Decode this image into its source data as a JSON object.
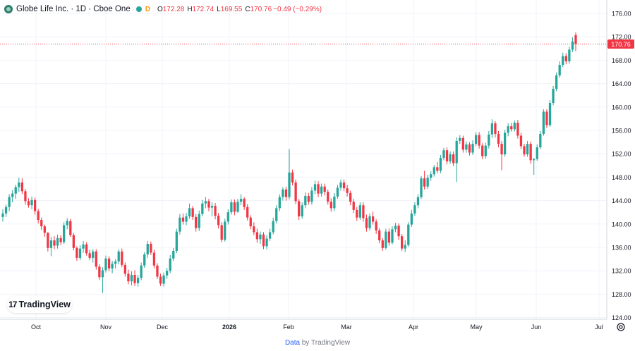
{
  "header": {
    "symbol": "Globe Life Inc. · 1D · Cboe One",
    "delayed_badge": "D",
    "o_label": "O",
    "o_value": "172.28",
    "h_label": "H",
    "h_value": "172.74",
    "l_label": "L",
    "l_value": "169.55",
    "c_label": "C",
    "c_value": "170.76",
    "change": "−0.49 (−0.29%)"
  },
  "branding": {
    "logo_mark": "17",
    "logo_text": "TradingView"
  },
  "footer": {
    "data_link": "Data",
    "by_text": " by TradingView"
  },
  "colors": {
    "up": "#26a69a",
    "down": "#f23645",
    "grid": "#f0f3fa",
    "axis_text": "#131722",
    "price_label_bg": "#f23645"
  },
  "chart_data": {
    "type": "candlestick",
    "title": "Globe Life Inc. · 1D · Cboe One",
    "y_ticks": [
      "124.00",
      "128.00",
      "132.00",
      "136.00",
      "140.00",
      "144.00",
      "148.00",
      "152.00",
      "156.00",
      "160.00",
      "164.00",
      "168.00",
      "172.00",
      "176.00"
    ],
    "x_ticks": [
      "Oct",
      "Nov",
      "Dec",
      "2026",
      "Feb",
      "Mar",
      "Apr",
      "May",
      "Jun",
      "Jul"
    ],
    "ylim": [
      124,
      176
    ],
    "last_price": 170.76,
    "last_price_label": "170.76",
    "grid": true,
    "ohlc": [
      [
        141.2,
        142.5,
        140.4,
        141.8
      ],
      [
        141.8,
        143.3,
        141.2,
        142.9
      ],
      [
        142.9,
        145.1,
        142.2,
        144.6
      ],
      [
        144.6,
        145.8,
        143.7,
        145.2
      ],
      [
        145.2,
        146.7,
        144.3,
        146.3
      ],
      [
        146.3,
        147.9,
        145.5,
        147.1
      ],
      [
        147.1,
        147.8,
        145.1,
        145.6
      ],
      [
        145.6,
        146.0,
        143.3,
        143.9
      ],
      [
        143.9,
        144.4,
        142.8,
        143.2
      ],
      [
        143.2,
        144.7,
        142.5,
        144.1
      ],
      [
        144.1,
        144.5,
        141.6,
        142.2
      ],
      [
        142.2,
        142.6,
        140.1,
        140.7
      ],
      [
        140.7,
        141.1,
        139.0,
        139.6
      ],
      [
        139.6,
        139.9,
        137.8,
        138.5
      ],
      [
        138.5,
        138.6,
        135.3,
        135.9
      ],
      [
        135.9,
        137.8,
        134.5,
        137.2
      ],
      [
        137.2,
        137.9,
        135.7,
        136.3
      ],
      [
        136.3,
        138.2,
        135.8,
        137.6
      ],
      [
        137.6,
        138.1,
        136.4,
        136.9
      ],
      [
        136.9,
        140.3,
        136.6,
        139.8
      ],
      [
        139.8,
        141.0,
        139.1,
        140.5
      ],
      [
        140.5,
        140.9,
        137.8,
        138.1
      ],
      [
        138.1,
        138.5,
        135.5,
        135.9
      ],
      [
        135.9,
        136.2,
        133.7,
        134.2
      ],
      [
        134.2,
        136.4,
        133.8,
        135.8
      ],
      [
        135.8,
        137.1,
        135.1,
        136.5
      ],
      [
        136.5,
        136.9,
        134.6,
        135.0
      ],
      [
        135.0,
        135.6,
        133.8,
        134.2
      ],
      [
        134.2,
        135.7,
        133.4,
        135.3
      ],
      [
        135.3,
        135.7,
        132.2,
        132.7
      ],
      [
        132.7,
        133.1,
        130.4,
        130.9
      ],
      [
        130.9,
        132.6,
        128.2,
        132.1
      ],
      [
        132.1,
        134.6,
        131.7,
        134.1
      ],
      [
        134.1,
        134.5,
        131.9,
        132.4
      ],
      [
        132.4,
        133.7,
        131.6,
        133.2
      ],
      [
        133.2,
        134.0,
        132.4,
        133.6
      ],
      [
        133.6,
        135.7,
        133.1,
        135.3
      ],
      [
        135.3,
        135.8,
        132.6,
        133.0
      ],
      [
        133.0,
        133.4,
        131.0,
        131.5
      ],
      [
        131.5,
        132.2,
        129.7,
        130.2
      ],
      [
        130.2,
        131.9,
        129.5,
        131.3
      ],
      [
        131.3,
        132.1,
        129.4,
        129.9
      ],
      [
        129.9,
        131.3,
        129.3,
        130.8
      ],
      [
        130.8,
        133.4,
        130.4,
        132.9
      ],
      [
        132.9,
        135.2,
        132.5,
        134.8
      ],
      [
        134.8,
        137.1,
        134.2,
        136.6
      ],
      [
        136.6,
        137.0,
        134.7,
        135.1
      ],
      [
        135.1,
        135.6,
        132.4,
        132.9
      ],
      [
        132.9,
        133.3,
        130.6,
        131.0
      ],
      [
        131.0,
        131.5,
        129.4,
        129.8
      ],
      [
        129.8,
        131.7,
        129.3,
        131.2
      ],
      [
        131.2,
        132.5,
        130.6,
        132.0
      ],
      [
        132.0,
        134.7,
        131.6,
        134.1
      ],
      [
        134.1,
        135.9,
        133.7,
        135.4
      ],
      [
        135.4,
        139.2,
        135.0,
        138.7
      ],
      [
        138.7,
        141.7,
        138.2,
        141.1
      ],
      [
        141.1,
        141.8,
        139.9,
        140.4
      ],
      [
        140.4,
        141.9,
        139.8,
        141.3
      ],
      [
        141.3,
        143.5,
        140.9,
        142.7
      ],
      [
        142.7,
        143.1,
        140.7,
        141.2
      ],
      [
        141.2,
        141.7,
        138.7,
        139.3
      ],
      [
        139.3,
        142.3,
        138.8,
        141.7
      ],
      [
        141.7,
        144.1,
        141.3,
        143.5
      ],
      [
        143.5,
        144.6,
        142.7,
        143.9
      ],
      [
        143.9,
        144.3,
        142.2,
        142.8
      ],
      [
        142.8,
        143.7,
        141.3,
        143.1
      ],
      [
        143.1,
        143.6,
        140.8,
        141.4
      ],
      [
        141.4,
        141.9,
        139.2,
        139.8
      ],
      [
        139.8,
        140.3,
        136.9,
        137.3
      ],
      [
        137.3,
        140.9,
        137.0,
        140.4
      ],
      [
        140.4,
        142.5,
        139.9,
        142.0
      ],
      [
        142.0,
        144.2,
        141.6,
        143.7
      ],
      [
        143.7,
        144.2,
        141.5,
        142.1
      ],
      [
        142.1,
        144.3,
        141.9,
        143.8
      ],
      [
        143.8,
        145.1,
        143.2,
        144.3
      ],
      [
        144.3,
        144.6,
        142.4,
        142.9
      ],
      [
        142.9,
        143.4,
        140.6,
        141.1
      ],
      [
        141.1,
        141.5,
        139.1,
        139.6
      ],
      [
        139.6,
        140.3,
        138.1,
        138.6
      ],
      [
        138.6,
        139.2,
        136.8,
        137.4
      ],
      [
        137.4,
        138.7,
        136.6,
        138.2
      ],
      [
        138.2,
        138.6,
        135.7,
        136.2
      ],
      [
        136.2,
        138.1,
        135.7,
        137.5
      ],
      [
        137.5,
        139.2,
        137.1,
        138.6
      ],
      [
        138.6,
        141.1,
        138.2,
        140.5
      ],
      [
        140.5,
        143.2,
        140.1,
        142.7
      ],
      [
        142.7,
        145.1,
        142.2,
        144.6
      ],
      [
        144.6,
        146.3,
        144.0,
        145.9
      ],
      [
        145.9,
        146.4,
        144.0,
        144.6
      ],
      [
        144.6,
        152.8,
        144.2,
        148.8
      ],
      [
        148.8,
        149.3,
        146.6,
        147.1
      ],
      [
        147.1,
        147.6,
        143.4,
        143.9
      ],
      [
        143.9,
        144.3,
        140.7,
        141.3
      ],
      [
        141.3,
        143.7,
        140.9,
        143.2
      ],
      [
        143.2,
        145.4,
        142.7,
        144.8
      ],
      [
        144.8,
        145.3,
        143.3,
        143.8
      ],
      [
        143.8,
        146.3,
        143.3,
        145.7
      ],
      [
        145.7,
        147.4,
        145.1,
        146.8
      ],
      [
        146.8,
        147.3,
        144.6,
        145.2
      ],
      [
        145.2,
        146.9,
        144.7,
        146.4
      ],
      [
        146.4,
        146.9,
        144.9,
        145.5
      ],
      [
        145.5,
        145.9,
        143.3,
        143.8
      ],
      [
        143.8,
        144.4,
        142.1,
        142.7
      ],
      [
        142.7,
        145.3,
        142.2,
        144.7
      ],
      [
        144.7,
        146.7,
        144.3,
        146.2
      ],
      [
        146.2,
        147.6,
        145.7,
        147.1
      ],
      [
        147.1,
        147.6,
        145.6,
        146.1
      ],
      [
        146.1,
        146.7,
        144.7,
        145.3
      ],
      [
        145.3,
        145.7,
        143.2,
        143.8
      ],
      [
        143.8,
        144.3,
        141.9,
        142.4
      ],
      [
        142.4,
        142.9,
        140.5,
        141.1
      ],
      [
        141.1,
        143.7,
        140.7,
        143.2
      ],
      [
        143.2,
        143.7,
        140.4,
        141.0
      ],
      [
        141.0,
        141.6,
        138.7,
        139.3
      ],
      [
        139.3,
        141.8,
        138.9,
        141.3
      ],
      [
        141.3,
        142.1,
        139.9,
        140.4
      ],
      [
        140.4,
        140.8,
        138.3,
        138.9
      ],
      [
        138.9,
        139.3,
        136.7,
        137.2
      ],
      [
        137.2,
        137.6,
        135.4,
        135.9
      ],
      [
        135.9,
        139.2,
        135.6,
        138.7
      ],
      [
        138.7,
        139.2,
        136.3,
        136.8
      ],
      [
        136.8,
        139.6,
        136.5,
        139.1
      ],
      [
        139.1,
        140.2,
        138.6,
        139.7
      ],
      [
        139.7,
        140.1,
        137.3,
        137.9
      ],
      [
        137.9,
        138.3,
        135.4,
        135.8
      ],
      [
        135.8,
        137.2,
        135.2,
        136.4
      ],
      [
        136.4,
        140.3,
        136.1,
        139.9
      ],
      [
        139.9,
        142.4,
        139.5,
        141.8
      ],
      [
        141.8,
        143.7,
        141.4,
        143.2
      ],
      [
        143.2,
        145.1,
        142.7,
        144.6
      ],
      [
        144.6,
        148.2,
        144.3,
        147.8
      ],
      [
        147.8,
        149.1,
        145.9,
        146.4
      ],
      [
        146.4,
        148.4,
        146.0,
        147.9
      ],
      [
        147.9,
        149.0,
        147.4,
        148.5
      ],
      [
        148.5,
        150.1,
        148.1,
        149.7
      ],
      [
        149.7,
        150.6,
        148.7,
        149.1
      ],
      [
        149.1,
        151.8,
        148.7,
        151.3
      ],
      [
        151.3,
        153.0,
        150.9,
        152.6
      ],
      [
        152.6,
        153.1,
        150.2,
        150.7
      ],
      [
        150.7,
        152.4,
        150.3,
        151.9
      ],
      [
        151.9,
        152.4,
        149.9,
        150.4
      ],
      [
        150.4,
        154.8,
        147.2,
        154.2
      ],
      [
        154.2,
        155.2,
        153.7,
        154.7
      ],
      [
        154.7,
        155.1,
        152.2,
        152.7
      ],
      [
        152.7,
        154.1,
        152.2,
        153.6
      ],
      [
        153.6,
        154.0,
        151.7,
        152.2
      ],
      [
        152.2,
        154.3,
        151.8,
        153.7
      ],
      [
        153.7,
        155.7,
        153.3,
        155.2
      ],
      [
        155.2,
        155.7,
        152.9,
        153.4
      ],
      [
        153.4,
        153.8,
        151.1,
        151.6
      ],
      [
        151.6,
        153.9,
        151.2,
        153.4
      ],
      [
        153.4,
        155.9,
        152.9,
        155.3
      ],
      [
        155.3,
        157.9,
        154.7,
        157.2
      ],
      [
        157.2,
        157.6,
        154.8,
        155.4
      ],
      [
        155.4,
        155.9,
        153.1,
        153.7
      ],
      [
        153.7,
        154.2,
        149.2,
        151.9
      ],
      [
        151.9,
        156.1,
        151.5,
        155.6
      ],
      [
        155.6,
        157.2,
        155.0,
        156.7
      ],
      [
        156.7,
        157.3,
        155.8,
        156.2
      ],
      [
        156.2,
        157.7,
        155.8,
        157.3
      ],
      [
        157.3,
        157.8,
        154.6,
        155.1
      ],
      [
        155.1,
        155.6,
        152.8,
        153.3
      ],
      [
        153.3,
        153.7,
        151.5,
        151.9
      ],
      [
        151.9,
        154.2,
        151.5,
        153.7
      ],
      [
        153.7,
        154.1,
        150.3,
        150.9
      ],
      [
        150.9,
        151.3,
        148.4,
        151.1
      ],
      [
        151.1,
        153.6,
        150.8,
        153.1
      ],
      [
        153.1,
        155.9,
        152.8,
        155.4
      ],
      [
        155.4,
        159.6,
        155.1,
        159.2
      ],
      [
        159.2,
        159.6,
        156.4,
        156.9
      ],
      [
        156.9,
        161.2,
        156.6,
        160.7
      ],
      [
        160.7,
        163.6,
        160.3,
        163.1
      ],
      [
        163.1,
        165.9,
        162.7,
        165.4
      ],
      [
        165.4,
        167.8,
        165.0,
        167.2
      ],
      [
        167.2,
        169.3,
        166.8,
        168.7
      ],
      [
        168.7,
        169.2,
        167.3,
        167.8
      ],
      [
        167.8,
        170.3,
        167.4,
        169.8
      ],
      [
        169.8,
        171.9,
        169.4,
        171.2
      ],
      [
        172.28,
        172.74,
        169.55,
        170.76
      ]
    ]
  }
}
